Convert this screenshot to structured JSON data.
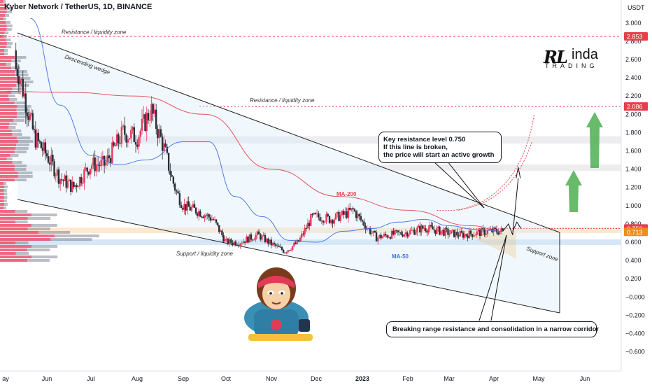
{
  "header": {
    "symbol_line": "Kyber Network / TetherUS, 1D, BINANCE",
    "currency": "USDT"
  },
  "logo": {
    "mark": "RL",
    "name": "inda",
    "sub": "TRADING"
  },
  "colors": {
    "up": "#e8385a",
    "down": "#2a2e39",
    "ma200": "#e0464e",
    "ma50": "#3d6fe0",
    "resistance_band": "#e8e8ec",
    "support_band": "#cfe3f6",
    "arrow_green": "#4caf50",
    "orange_zone": "#f6a93b",
    "price_label_red": "#e83d4b",
    "price_label_orange": "#f08c1a"
  },
  "chart_data": {
    "type": "candlestick",
    "title": "Kyber Network / TetherUS, 1D, BINANCE",
    "xlabel": "",
    "ylabel": "USDT",
    "ylim": [
      -0.7,
      3.2
    ],
    "x_ticks": [
      "ay",
      "Jun",
      "Jul",
      "Aug",
      "Sep",
      "Oct",
      "Nov",
      "Dec",
      "2023",
      "Feb",
      "Mar",
      "Apr",
      "May",
      "Jun"
    ],
    "y_ticks": [
      "3.000",
      "2.800",
      "2.600",
      "2.400",
      "2.200",
      "2.000",
      "1.800",
      "1.600",
      "1.400",
      "1.200",
      "1.000",
      "0.800",
      "0.600",
      "0.400",
      "0.200",
      "−0.000",
      "−0.200",
      "−0.400",
      "−0.600"
    ],
    "price_labels": [
      {
        "value": 2.853,
        "text": "2.853",
        "color": "red"
      },
      {
        "value": 2.086,
        "text": "2.086",
        "color": "red"
      },
      {
        "value": 0.75,
        "text": "0.750",
        "color": "red"
      },
      {
        "value": 0.713,
        "text": "0.713",
        "color": "orange"
      }
    ],
    "price_path": {
      "x_months": [
        0.3,
        0.7,
        1.0,
        1.3,
        1.6,
        2.0,
        2.3,
        2.7,
        3.0,
        3.3,
        3.6,
        3.75,
        3.85,
        4.0,
        4.4,
        4.7,
        5.0,
        5.3,
        5.7,
        6.0,
        6.3,
        6.6,
        6.9,
        7.1,
        7.3,
        7.6,
        7.8,
        8.0,
        8.3,
        8.6,
        8.9,
        9.1,
        9.4,
        9.6,
        10.0,
        10.3,
        10.6,
        10.9,
        11.2
      ],
      "close": [
        2.5,
        1.75,
        1.55,
        1.3,
        1.2,
        1.45,
        1.45,
        1.8,
        1.75,
        2.05,
        1.6,
        1.3,
        1.15,
        1.0,
        0.93,
        0.85,
        0.6,
        0.6,
        0.68,
        0.58,
        0.5,
        0.6,
        0.87,
        0.88,
        0.85,
        0.9,
        0.95,
        0.82,
        0.65,
        0.68,
        0.7,
        0.72,
        0.76,
        0.74,
        0.7,
        0.68,
        0.7,
        0.72,
        0.72
      ]
    },
    "series": [
      {
        "name": "MA-200",
        "x_months": [
          0,
          1.5,
          3.0,
          4.5,
          6.0,
          7.5,
          9.0,
          10.5,
          11.2
        ],
        "values": [
          2.25,
          2.24,
          2.2,
          2.0,
          1.4,
          1.1,
          0.95,
          0.78,
          0.72
        ]
      },
      {
        "name": "MA-50",
        "x_months": [
          0.6,
          1.3,
          2.0,
          2.6,
          3.2,
          4.0,
          4.6,
          5.2,
          5.8,
          6.4,
          7.0,
          7.6,
          8.2,
          8.8,
          9.4,
          10.0,
          10.6,
          11.2
        ],
        "values": [
          3.05,
          2.1,
          1.55,
          1.45,
          1.5,
          1.7,
          1.7,
          1.1,
          0.88,
          0.62,
          0.6,
          0.72,
          0.75,
          0.82,
          0.85,
          0.78,
          0.74,
          0.72
        ]
      }
    ],
    "annotations": [
      {
        "text": "Resistance / liquidity zone",
        "value": 2.85
      },
      {
        "text": "Resistance / liquidity zone",
        "value": 2.1
      },
      {
        "text": "Descending wedge"
      },
      {
        "text": "Support / liquidity zone",
        "value": 0.6
      },
      {
        "text": "Support zone"
      },
      {
        "text": "MA-200"
      },
      {
        "text": "MA-50"
      }
    ],
    "callouts": [
      {
        "lines": [
          "Key resistance level 0.750",
          "If this line is broken,",
          "the price will start an active growth"
        ]
      },
      {
        "lines": [
          "Breaking range resistance and consolidation in a narrow corridor"
        ]
      }
    ],
    "bands": [
      {
        "name": "resistance",
        "from": 1.68,
        "to": 1.76
      },
      {
        "name": "resistance",
        "from": 1.38,
        "to": 1.45
      },
      {
        "name": "support",
        "from": 0.57,
        "to": 0.63
      },
      {
        "name": "key-resistance",
        "from": 0.7,
        "to": 0.76
      }
    ]
  }
}
